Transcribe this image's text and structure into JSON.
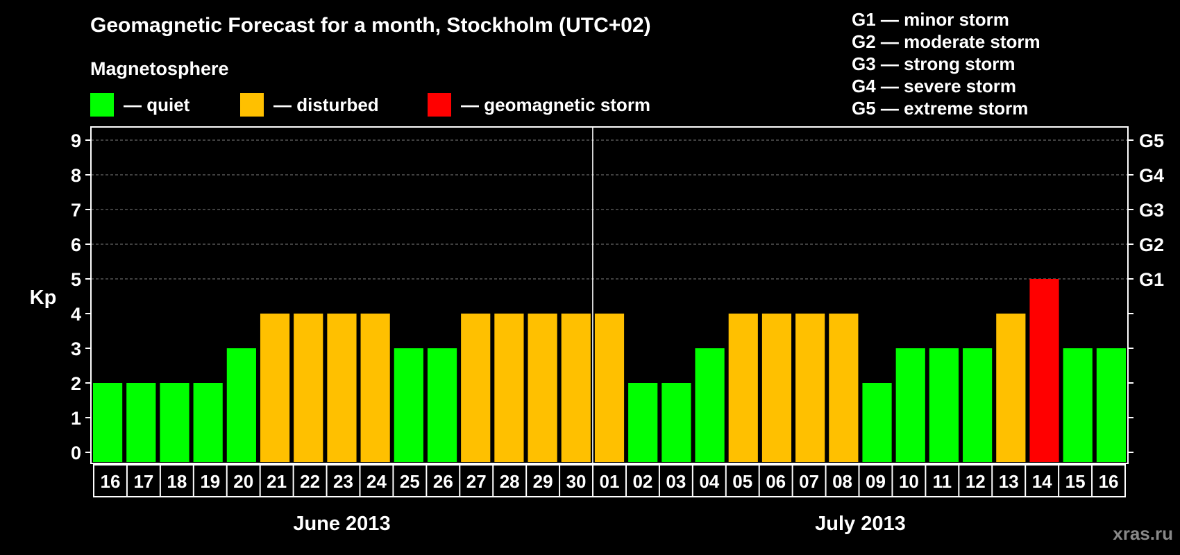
{
  "header": {
    "title": "Geomagnetic Forecast for a month, Stockholm (UTC+02)",
    "magnetosphere_label": "Magnetosphere"
  },
  "legend": [
    {
      "text": "— quiet",
      "color": "#00ff00"
    },
    {
      "text": "— disturbed",
      "color": "#ffc000"
    },
    {
      "text": "— geomagnetic storm",
      "color": "#ff0000"
    }
  ],
  "gscale": [
    "G1 — minor storm",
    "G2 — moderate storm",
    "G3 — strong storm",
    "G4 — severe storm",
    "G5 — extreme storm"
  ],
  "watermark": "xras.ru",
  "colors": {
    "quiet": "#00ff00",
    "disturbed": "#ffc000",
    "storm": "#ff0000",
    "background": "#000000",
    "axis": "#ffffff",
    "grid": "#808080"
  },
  "chart_data": {
    "type": "bar",
    "ylabel": "Kp",
    "ylim": [
      0,
      9
    ],
    "yticks": [
      "0",
      "1",
      "2",
      "3",
      "4",
      "5",
      "6",
      "7",
      "8",
      "9"
    ],
    "right_ticks": [
      {
        "kp": 5,
        "label": "G1"
      },
      {
        "kp": 6,
        "label": "G2"
      },
      {
        "kp": 7,
        "label": "G3"
      },
      {
        "kp": 8,
        "label": "G4"
      },
      {
        "kp": 9,
        "label": "G5"
      }
    ],
    "grid": "dashed horizontal at Kp 5-9",
    "categories": [
      "16",
      "17",
      "18",
      "19",
      "20",
      "21",
      "22",
      "23",
      "24",
      "25",
      "26",
      "27",
      "28",
      "29",
      "30",
      "01",
      "02",
      "03",
      "04",
      "05",
      "06",
      "07",
      "08",
      "09",
      "10",
      "11",
      "12",
      "13",
      "14",
      "15",
      "16"
    ],
    "values": [
      2,
      2,
      2,
      2,
      3,
      4,
      4,
      4,
      4,
      3,
      3,
      4,
      4,
      4,
      4,
      4,
      2,
      2,
      3,
      4,
      4,
      4,
      4,
      2,
      3,
      3,
      3,
      4,
      5,
      3,
      3
    ],
    "levels": [
      "quiet",
      "quiet",
      "quiet",
      "quiet",
      "quiet",
      "disturbed",
      "disturbed",
      "disturbed",
      "disturbed",
      "quiet",
      "quiet",
      "disturbed",
      "disturbed",
      "disturbed",
      "disturbed",
      "disturbed",
      "quiet",
      "quiet",
      "quiet",
      "disturbed",
      "disturbed",
      "disturbed",
      "disturbed",
      "quiet",
      "quiet",
      "quiet",
      "quiet",
      "disturbed",
      "storm",
      "quiet",
      "quiet"
    ],
    "months": [
      {
        "label": "June 2013",
        "start_index": 0,
        "end_index": 14
      },
      {
        "label": "July 2013",
        "start_index": 15,
        "end_index": 30
      }
    ],
    "month_divider_after_index": 14
  }
}
